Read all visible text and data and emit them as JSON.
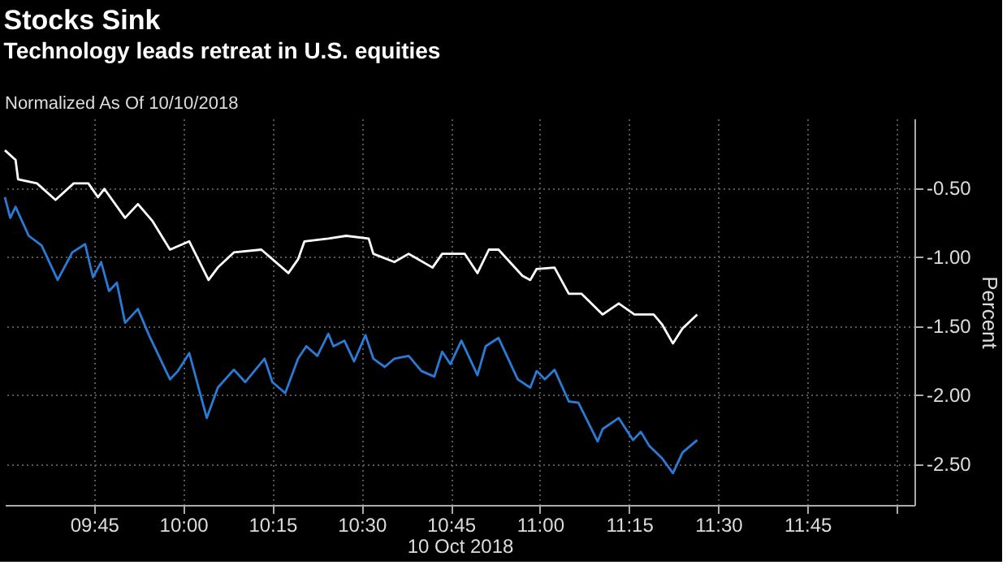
{
  "chart_data": {
    "type": "line",
    "title": "Stocks Sink",
    "subtitle": "Technology leads retreat in U.S. equities",
    "annotations": [
      "Normalized As Of 10/10/2018"
    ],
    "xlabel": "10 Oct 2018",
    "ylabel": "Percent",
    "xlim": [
      9.5,
      12.05
    ],
    "ylim": [
      -2.8,
      0
    ],
    "xticks": [
      {
        "value": 9.75,
        "label": "09:45"
      },
      {
        "value": 10,
        "label": "10:00"
      },
      {
        "value": 10.25,
        "label": "10:15"
      },
      {
        "value": 10.5,
        "label": "10:30"
      },
      {
        "value": 10.75,
        "label": "10:45"
      },
      {
        "value": 11,
        "label": "11:00"
      },
      {
        "value": 11.25,
        "label": "11:15"
      },
      {
        "value": 11.5,
        "label": "11:30"
      },
      {
        "value": 11.75,
        "label": "11:45"
      },
      {
        "value": 12,
        "label": null
      }
    ],
    "yticks": [
      {
        "value": -0.5,
        "label": "-0.50"
      },
      {
        "value": -1,
        "label": "-1.00"
      },
      {
        "value": -1.5,
        "label": "-1.50"
      },
      {
        "value": -2,
        "label": "-2.00"
      },
      {
        "value": -2.5,
        "label": "-2.50"
      }
    ],
    "grid": true,
    "series": [
      {
        "color": "#ffffff",
        "x": [
          9.5,
          9.53,
          9.537,
          9.59,
          9.642,
          9.693,
          9.734,
          9.761,
          9.779,
          9.837,
          9.873,
          9.913,
          9.963,
          10.017,
          10.071,
          10.097,
          10.142,
          10.219,
          10.295,
          10.322,
          10.34,
          10.407,
          10.457,
          10.52,
          10.533,
          10.592,
          10.632,
          10.699,
          10.726,
          10.789,
          10.825,
          10.857,
          10.884,
          10.951,
          10.973,
          10.991,
          11.041,
          11.081,
          11.117,
          11.176,
          11.221,
          11.265,
          11.319,
          11.342,
          11.373,
          11.4,
          11.441
        ],
        "values": [
          -0.23,
          -0.3,
          -0.44,
          -0.47,
          -0.59,
          -0.47,
          -0.47,
          -0.57,
          -0.51,
          -0.72,
          -0.62,
          -0.74,
          -0.95,
          -0.89,
          -1.17,
          -1.08,
          -0.97,
          -0.95,
          -1.12,
          -1.02,
          -0.89,
          -0.87,
          -0.85,
          -0.87,
          -0.98,
          -1.04,
          -0.98,
          -1.08,
          -0.98,
          -0.98,
          -1.12,
          -0.95,
          -0.95,
          -1.14,
          -1.17,
          -1.09,
          -1.08,
          -1.27,
          -1.27,
          -1.42,
          -1.34,
          -1.42,
          -1.42,
          -1.49,
          -1.63,
          -1.52,
          -1.42
        ]
      },
      {
        "color": "#2a7bd6",
        "x": [
          9.5,
          9.515,
          9.53,
          9.567,
          9.603,
          9.648,
          9.689,
          9.725,
          9.747,
          9.77,
          9.792,
          9.814,
          9.837,
          9.873,
          9.904,
          9.963,
          9.985,
          10.017,
          10.066,
          10.097,
          10.142,
          10.174,
          10.228,
          10.25,
          10.286,
          10.322,
          10.345,
          10.376,
          10.407,
          10.421,
          10.452,
          10.479,
          10.511,
          10.533,
          10.565,
          10.592,
          10.632,
          10.668,
          10.704,
          10.726,
          10.749,
          10.78,
          10.825,
          10.848,
          10.884,
          10.938,
          10.973,
          10.991,
          11.014,
          11.041,
          11.081,
          11.108,
          11.162,
          11.176,
          11.221,
          11.261,
          11.283,
          11.306,
          11.342,
          11.373,
          11.4,
          11.441
        ],
        "values": [
          -0.57,
          -0.72,
          -0.64,
          -0.85,
          -0.92,
          -1.17,
          -0.97,
          -0.91,
          -1.15,
          -1.04,
          -1.25,
          -1.19,
          -1.48,
          -1.38,
          -1.57,
          -1.89,
          -1.83,
          -1.7,
          -2.17,
          -1.95,
          -1.82,
          -1.91,
          -1.74,
          -1.91,
          -1.99,
          -1.74,
          -1.65,
          -1.72,
          -1.56,
          -1.65,
          -1.61,
          -1.76,
          -1.57,
          -1.74,
          -1.8,
          -1.74,
          -1.72,
          -1.83,
          -1.87,
          -1.69,
          -1.78,
          -1.61,
          -1.86,
          -1.65,
          -1.59,
          -1.89,
          -1.95,
          -1.83,
          -1.89,
          -1.82,
          -2.05,
          -2.06,
          -2.34,
          -2.25,
          -2.17,
          -2.33,
          -2.27,
          -2.37,
          -2.46,
          -2.57,
          -2.42,
          -2.33
        ]
      }
    ]
  }
}
